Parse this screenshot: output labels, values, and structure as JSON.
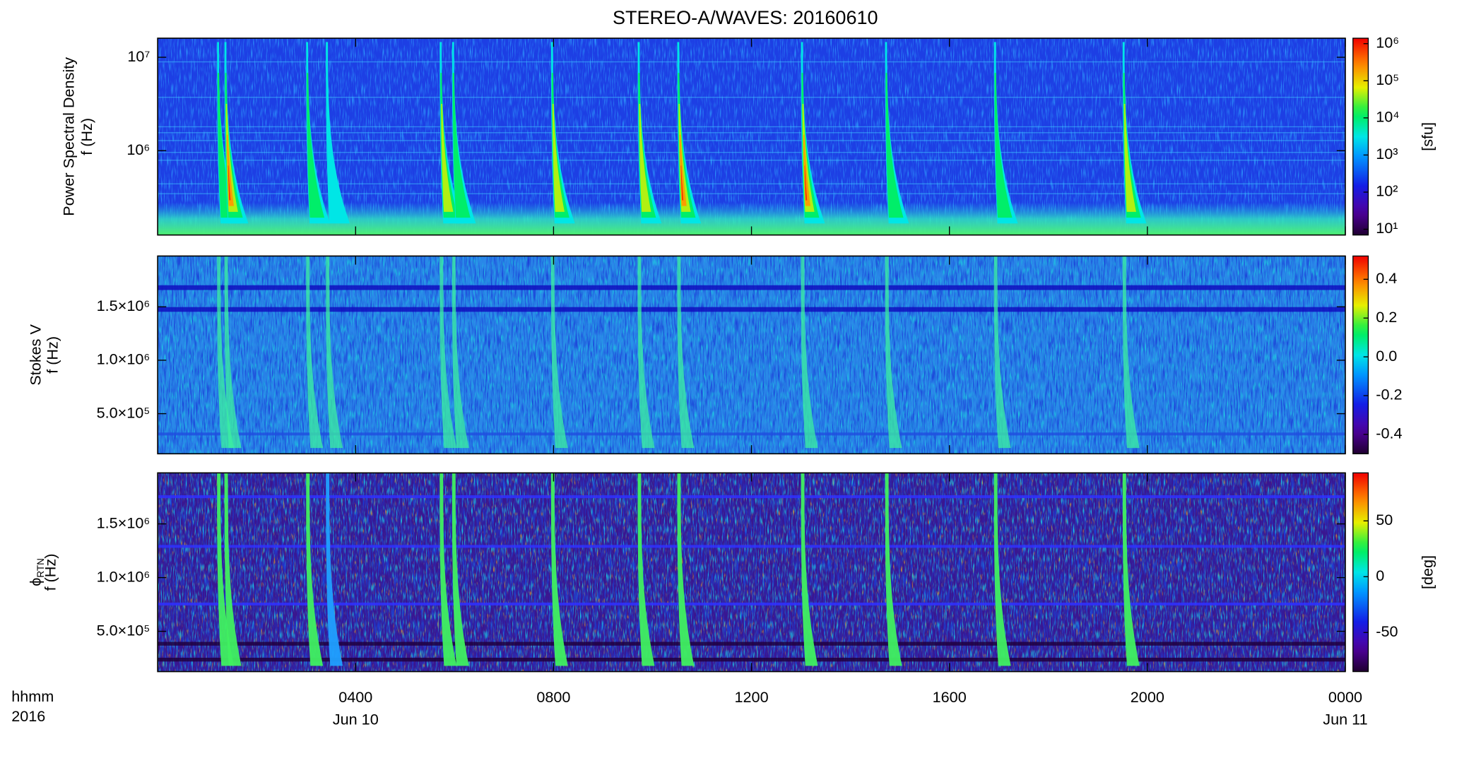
{
  "title": "STEREO-A/WAVES: 20160610",
  "xlim": [
    0,
    24
  ],
  "xticks": [
    {
      "value": 4,
      "label": "0400"
    },
    {
      "value": 8,
      "label": "0800"
    },
    {
      "value": 12,
      "label": "1200"
    },
    {
      "value": 16,
      "label": "1600"
    },
    {
      "value": 20,
      "label": "2000"
    },
    {
      "value": 24,
      "label": "0000"
    }
  ],
  "date_labels": [
    {
      "value": 4,
      "label": "Jun 10"
    },
    {
      "value": 24,
      "label": "Jun 11"
    }
  ],
  "x_label_lines": [
    "hhmm",
    "2016"
  ],
  "chart_data": [
    {
      "type": "spectrogram",
      "ylabel": "Power Spectral Density",
      "ylabel2": "f (Hz)",
      "yscale": "log",
      "ylim": [
        125000,
        16000000
      ],
      "yticks": [
        {
          "value": 1000000,
          "label": "10⁶"
        },
        {
          "value": 10000000,
          "label": "10⁷"
        }
      ],
      "zscale": "log",
      "zlim": [
        7,
        1400000
      ],
      "zticks": [
        {
          "value": 10,
          "label": "10¹"
        },
        {
          "value": 100,
          "label": "10²"
        },
        {
          "value": 1000,
          "label": "10³"
        },
        {
          "value": 10000,
          "label": "10⁴"
        },
        {
          "value": 100000,
          "label": "10⁵"
        },
        {
          "value": 1000000,
          "label": "10⁶"
        }
      ],
      "zunit": "[sfu]",
      "burst_hours": [
        1.2,
        1.35,
        3.0,
        3.4,
        5.7,
        5.95,
        7.95,
        9.7,
        10.5,
        13.0,
        14.7,
        16.9,
        19.5
      ],
      "burst_peak_sfu": [
        10000,
        1000000,
        10000,
        5000,
        100000,
        30000,
        100000,
        100000,
        1000000,
        1000000,
        10000,
        20000,
        100000
      ]
    },
    {
      "type": "spectrogram",
      "ylabel": "Stokes V",
      "ylabel2": "f (Hz)",
      "yscale": "linear",
      "ylim": [
        125000,
        1975000
      ],
      "yticks": [
        {
          "value": 500000,
          "label": "5.0×10⁵"
        },
        {
          "value": 1000000,
          "label": "1.0×10⁶"
        },
        {
          "value": 1500000,
          "label": "1.5×10⁶"
        }
      ],
      "zscale": "linear",
      "zlim": [
        -0.5,
        0.52
      ],
      "zticks": [
        0.4,
        0.2,
        {
          "value": 0,
          "label": "0.0"
        },
        -0.2,
        -0.4
      ]
    },
    {
      "type": "spectrogram",
      "ylabel": "ϕ",
      "ylabel_sub": "RTN",
      "ylabel2": "f (Hz)",
      "yscale": "linear",
      "ylim": [
        125000,
        1975000
      ],
      "yticks": [
        {
          "value": 500000,
          "label": "5.0×10⁵"
        },
        {
          "value": 1000000,
          "label": "1.0×10⁶"
        },
        {
          "value": 1500000,
          "label": "1.5×10⁶"
        }
      ],
      "zscale": "linear",
      "zlim": [
        -85,
        93
      ],
      "zticks": [
        50,
        0,
        -50
      ],
      "zunit": "[deg]"
    }
  ]
}
